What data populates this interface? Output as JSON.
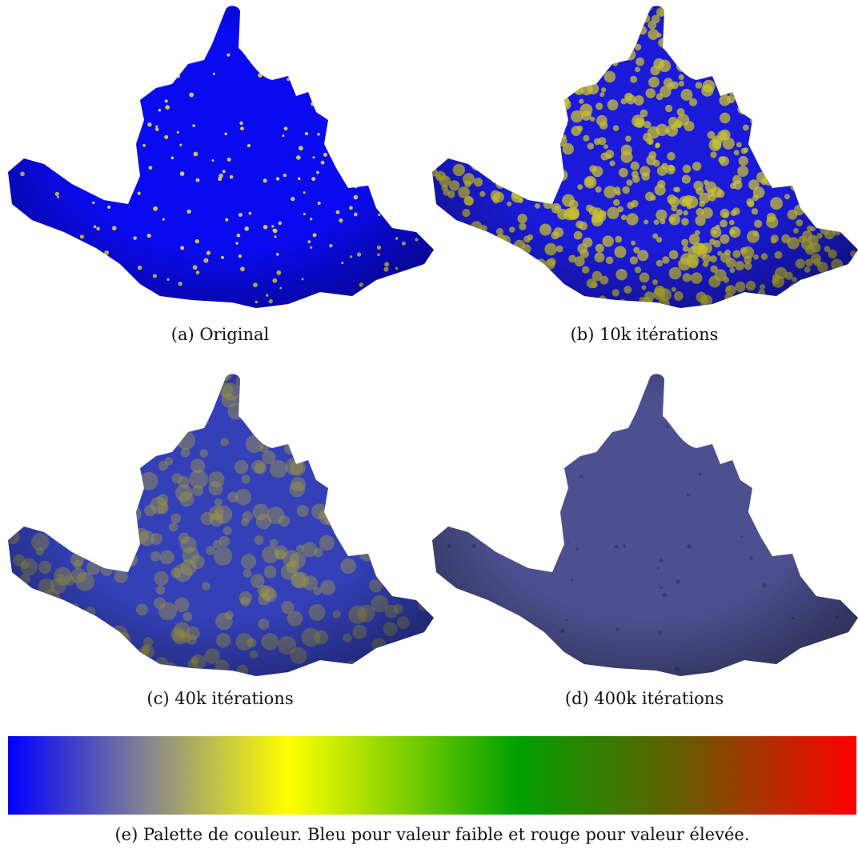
{
  "figures": [
    {
      "caption": "(a) Original"
    },
    {
      "caption": "(b) 10k itérations"
    },
    {
      "caption": "(c) 40k itérations"
    },
    {
      "caption": "(d) 400k itérations"
    }
  ],
  "palette": {
    "caption": "(e) Palette de couleur. Bleu pour valeur faible et rouge pour valeur élevée."
  }
}
